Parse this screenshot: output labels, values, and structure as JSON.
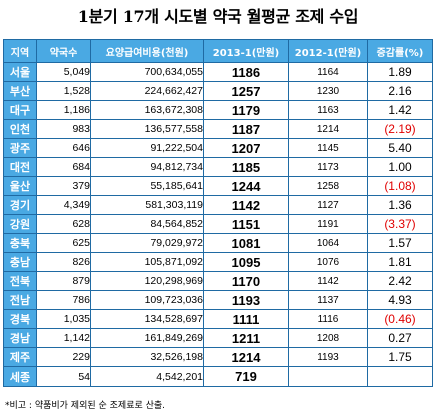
{
  "title": "1분기 17개 시도별 약국 월평균 조제 수입",
  "headers": {
    "region": "지역",
    "pharmacies": "약국수",
    "cost": "요양급여비용(천원)",
    "y2013": "2013-1(만원)",
    "y2012": "2012-1(만원)",
    "rate": "증감률(%)"
  },
  "rows": [
    {
      "region": "서울",
      "pharmacies": "5,049",
      "cost": "700,634,055",
      "y2013": "1186",
      "y2012": "1164",
      "rate": "1.89"
    },
    {
      "region": "부산",
      "pharmacies": "1,528",
      "cost": "224,662,427",
      "y2013": "1257",
      "y2012": "1230",
      "rate": "2.16"
    },
    {
      "region": "대구",
      "pharmacies": "1,186",
      "cost": "163,672,308",
      "y2013": "1179",
      "y2012": "1163",
      "rate": "1.42"
    },
    {
      "region": "인천",
      "pharmacies": "983",
      "cost": "136,577,558",
      "y2013": "1187",
      "y2012": "1214",
      "rate": "(2.19)"
    },
    {
      "region": "광주",
      "pharmacies": "646",
      "cost": "91,222,504",
      "y2013": "1207",
      "y2012": "1145",
      "rate": "5.40"
    },
    {
      "region": "대전",
      "pharmacies": "684",
      "cost": "94,812,734",
      "y2013": "1185",
      "y2012": "1173",
      "rate": "1.00"
    },
    {
      "region": "울산",
      "pharmacies": "379",
      "cost": "55,185,641",
      "y2013": "1244",
      "y2012": "1258",
      "rate": "(1.08)"
    },
    {
      "region": "경기",
      "pharmacies": "4,349",
      "cost": "581,303,119",
      "y2013": "1142",
      "y2012": "1127",
      "rate": "1.36"
    },
    {
      "region": "강원",
      "pharmacies": "628",
      "cost": "84,564,852",
      "y2013": "1151",
      "y2012": "1191",
      "rate": "(3.37)"
    },
    {
      "region": "충북",
      "pharmacies": "625",
      "cost": "79,029,972",
      "y2013": "1081",
      "y2012": "1064",
      "rate": "1.57"
    },
    {
      "region": "충남",
      "pharmacies": "826",
      "cost": "105,871,092",
      "y2013": "1095",
      "y2012": "1076",
      "rate": "1.81"
    },
    {
      "region": "전북",
      "pharmacies": "879",
      "cost": "120,298,969",
      "y2013": "1170",
      "y2012": "1142",
      "rate": "2.42"
    },
    {
      "region": "전남",
      "pharmacies": "786",
      "cost": "109,723,036",
      "y2013": "1193",
      "y2012": "1137",
      "rate": "4.93"
    },
    {
      "region": "경북",
      "pharmacies": "1,035",
      "cost": "134,528,697",
      "y2013": "1111",
      "y2012": "1116",
      "rate": "(0.46)"
    },
    {
      "region": "경남",
      "pharmacies": "1,142",
      "cost": "161,849,269",
      "y2013": "1211",
      "y2012": "1208",
      "rate": "0.27"
    },
    {
      "region": "제주",
      "pharmacies": "229",
      "cost": "32,526,198",
      "y2013": "1214",
      "y2012": "1193",
      "rate": "1.75"
    },
    {
      "region": "세종",
      "pharmacies": "54",
      "cost": "4,542,201",
      "y2013": "719",
      "y2012": "",
      "rate": ""
    }
  ],
  "footnote": "*비고 : 약품비가 제외된 순 조제료로 산출."
}
